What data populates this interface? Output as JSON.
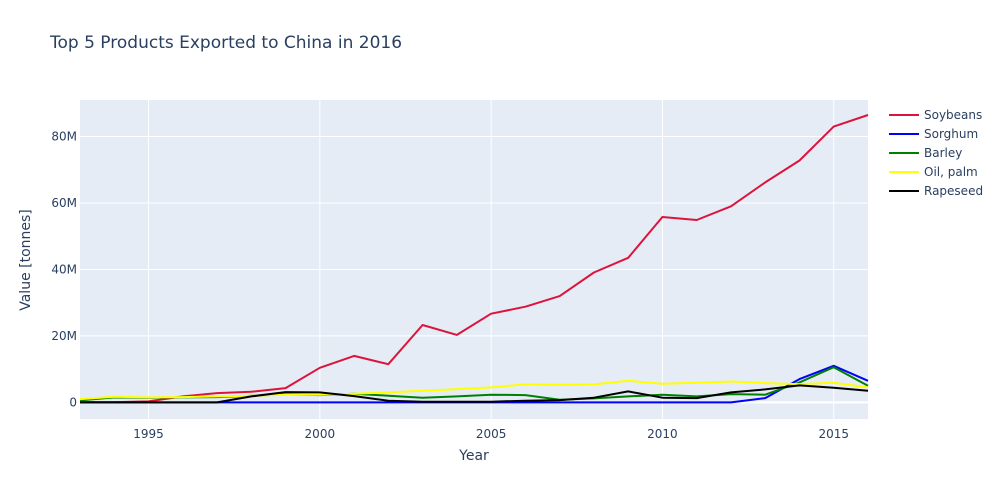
{
  "chart_data": {
    "type": "line",
    "title": "Top 5 Products Exported to China in 2016",
    "xlabel": "Year",
    "ylabel": "Value [tonnes]",
    "xlim": [
      1993,
      2016
    ],
    "ylim": [
      -5000000,
      91000000
    ],
    "x_ticks": [
      1995,
      2000,
      2005,
      2010,
      2015
    ],
    "y_ticks": [
      {
        "value": 0,
        "label": "0"
      },
      {
        "value": 20000000,
        "label": "20M"
      },
      {
        "value": 40000000,
        "label": "40M"
      },
      {
        "value": 60000000,
        "label": "60M"
      },
      {
        "value": 80000000,
        "label": "80M"
      }
    ],
    "grid": true,
    "legend_position": "right",
    "x": [
      1993,
      1994,
      1995,
      1996,
      1997,
      1998,
      1999,
      2000,
      2001,
      2002,
      2003,
      2004,
      2005,
      2006,
      2007,
      2008,
      2009,
      2010,
      2011,
      2012,
      2013,
      2014,
      2015,
      2016
    ],
    "series": [
      {
        "name": "Soybeans",
        "color": "#dc143c",
        "values": [
          100000,
          100000,
          300000,
          1800000,
          2800000,
          3200000,
          4300000,
          10400000,
          14000000,
          11500000,
          23300000,
          20300000,
          26700000,
          28800000,
          32000000,
          39100000,
          43500000,
          55800000,
          54900000,
          59000000,
          66200000,
          72800000,
          83000000,
          86500000
        ]
      },
      {
        "name": "Sorghum",
        "color": "#0000ff",
        "values": [
          0,
          0,
          0,
          0,
          0,
          0,
          0,
          0,
          0,
          0,
          0,
          0,
          0,
          0,
          0,
          0,
          0,
          0,
          0,
          0,
          1300000,
          7000000,
          11000000,
          6500000
        ]
      },
      {
        "name": "Barley",
        "color": "#008000",
        "values": [
          600000,
          1500000,
          1400000,
          1500000,
          1600000,
          2000000,
          2400000,
          2200000,
          2600000,
          2000000,
          1400000,
          1800000,
          2300000,
          2200000,
          800000,
          1200000,
          1800000,
          2300000,
          1800000,
          2500000,
          2300000,
          6000000,
          10600000,
          5000000
        ]
      },
      {
        "name": "Oil, palm",
        "color": "#ffff00",
        "values": [
          1000000,
          1700000,
          1500000,
          1600000,
          1800000,
          2000000,
          2300000,
          2300000,
          2600000,
          3000000,
          3500000,
          4000000,
          4500000,
          5400000,
          5300000,
          5400000,
          6500000,
          5600000,
          5900000,
          6300000,
          5800000,
          5500000,
          5900000,
          4500000
        ]
      },
      {
        "name": "Rapeseed",
        "color": "#000000",
        "values": [
          0,
          0,
          0,
          0,
          0,
          1800000,
          3100000,
          3000000,
          1900000,
          500000,
          200000,
          200000,
          200000,
          500000,
          700000,
          1400000,
          3300000,
          1400000,
          1300000,
          3000000,
          3900000,
          5100000,
          4400000,
          3500000
        ]
      }
    ]
  }
}
